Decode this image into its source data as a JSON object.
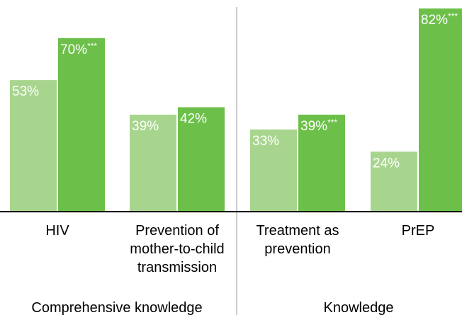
{
  "chart_data": {
    "type": "bar",
    "groups": [
      {
        "label": "Comprehensive knowledge",
        "categories": [
          {
            "label_lines": [
              "HIV"
            ],
            "values": [
              53,
              70
            ],
            "value_labels": [
              "53%",
              "70%"
            ],
            "significance": [
              "",
              "***"
            ]
          },
          {
            "label_lines": [
              "Prevention of",
              "mother-to-child",
              "transmission"
            ],
            "values": [
              39,
              42
            ],
            "value_labels": [
              "39%",
              "42%"
            ],
            "significance": [
              "",
              ""
            ]
          }
        ]
      },
      {
        "label": "Knowledge",
        "categories": [
          {
            "label_lines": [
              "Treatment as",
              "prevention"
            ],
            "values": [
              33,
              39
            ],
            "value_labels": [
              "33%",
              "39%"
            ],
            "significance": [
              "",
              "***"
            ]
          },
          {
            "label_lines": [
              "PrEP"
            ],
            "values": [
              24,
              82
            ],
            "value_labels": [
              "24%",
              "82%"
            ],
            "significance": [
              "",
              "***"
            ]
          }
        ]
      }
    ],
    "series_colors": [
      "#a8d58e",
      "#6cc04a"
    ],
    "ylim": [
      0,
      86
    ],
    "grid": false,
    "legend": "none"
  }
}
